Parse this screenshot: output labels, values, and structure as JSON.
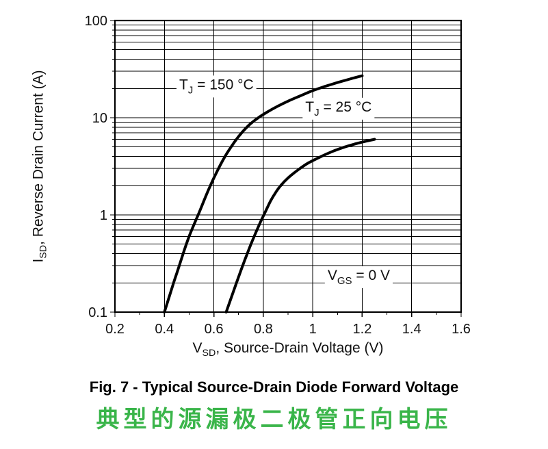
{
  "figure": {
    "caption_en": "Fig. 7 - Typical Source-Drain Diode Forward Voltage",
    "caption_zh": "典型的源漏极二极管正向电压",
    "caption_zh_color": "#3ab54a"
  },
  "axes": {
    "x_label": {
      "pre": "V",
      "sub": "SD",
      "rest": ", Source-Drain Voltage (V)"
    },
    "y_label": {
      "pre": "I",
      "sub": "SD",
      "rest": ", Reverse Drain Current (A)"
    }
  },
  "chart_data": {
    "type": "line",
    "title": "Fig. 7 - Typical Source-Drain Diode Forward Voltage",
    "x_axis": {
      "label": "VSD, Source-Drain Voltage (V)",
      "scale": "linear",
      "min": 0.2,
      "max": 1.6,
      "ticks": [
        0.2,
        0.4,
        0.6,
        0.8,
        1.0,
        1.2,
        1.4,
        1.6
      ],
      "tick_labels": [
        "0.2",
        "0.4",
        "0.6",
        "0.8",
        "1",
        "1.2",
        "1.4",
        "1.6"
      ],
      "minor_ticks": [
        0.3,
        0.5,
        0.7,
        0.9,
        1.1,
        1.3,
        1.5
      ]
    },
    "y_axis": {
      "label": "ISD, Reverse Drain Current (A)",
      "scale": "log",
      "min": 0.1,
      "max": 100,
      "ticks": [
        0.1,
        1,
        10,
        100
      ],
      "tick_labels": [
        "0.1",
        "1",
        "10",
        "100"
      ]
    },
    "grid": {
      "vertical_lines": [
        0.4,
        0.6,
        0.8,
        1.0,
        1.2,
        1.4
      ],
      "horizontal_major_lines": [
        1,
        10
      ],
      "log_minor_decades": [
        0.1,
        1,
        10
      ]
    },
    "line_color": "#000000",
    "series": [
      {
        "name": "TJ = 150 °C",
        "slug": "curve-tj-150c",
        "x": [
          0.4,
          0.42,
          0.44,
          0.46,
          0.48,
          0.5,
          0.52,
          0.54,
          0.56,
          0.58,
          0.6,
          0.63,
          0.66,
          0.7,
          0.74,
          0.78,
          0.82,
          0.86,
          0.9,
          0.95,
          1.0,
          1.05,
          1.1,
          1.15,
          1.2
        ],
        "y": [
          0.1,
          0.145,
          0.21,
          0.3,
          0.43,
          0.6,
          0.8,
          1.05,
          1.4,
          1.85,
          2.4,
          3.4,
          4.6,
          6.4,
          8.3,
          10.0,
          11.6,
          13.2,
          14.8,
          16.8,
          19.0,
          21.0,
          23.0,
          25.0,
          27.0
        ]
      },
      {
        "name": "TJ = 25 °C",
        "slug": "curve-tj-25c",
        "x": [
          0.65,
          0.67,
          0.69,
          0.71,
          0.73,
          0.75,
          0.77,
          0.79,
          0.81,
          0.83,
          0.85,
          0.87,
          0.9,
          0.94,
          0.98,
          1.03,
          1.08,
          1.13,
          1.18,
          1.25
        ],
        "y": [
          0.1,
          0.14,
          0.195,
          0.27,
          0.37,
          0.5,
          0.66,
          0.86,
          1.1,
          1.4,
          1.7,
          2.0,
          2.4,
          2.9,
          3.4,
          3.95,
          4.5,
          5.0,
          5.45,
          6.0
        ]
      }
    ],
    "annotations": [
      {
        "name": "label-tj-150",
        "x": 0.46,
        "y": 22,
        "parts": [
          {
            "t": "T"
          },
          {
            "t": "J",
            "sub": true
          },
          {
            "t": " = 150 °C"
          }
        ]
      },
      {
        "name": "label-tj-25",
        "x": 0.97,
        "y": 13,
        "parts": [
          {
            "t": "T"
          },
          {
            "t": "J",
            "sub": true
          },
          {
            "t": " = 25 °C"
          }
        ]
      },
      {
        "name": "label-vgs-0",
        "x": 1.06,
        "y": 0.24,
        "parts": [
          {
            "t": "V"
          },
          {
            "t": "GS",
            "sub": true
          },
          {
            "t": " = 0 V"
          }
        ]
      }
    ]
  }
}
